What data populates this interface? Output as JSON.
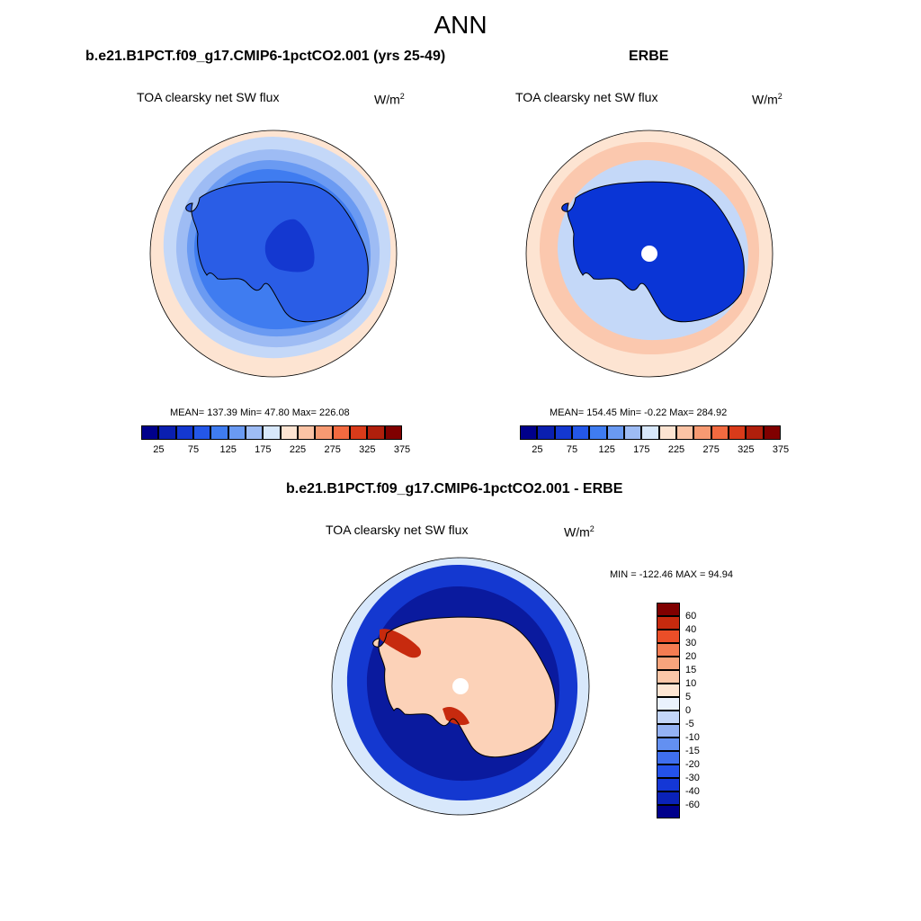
{
  "figure": {
    "season": "ANN",
    "panels": {
      "model": {
        "title": "b.e21.B1PCT.f09_g17.CMIP6-1pctCO2.001 (yrs 25-49)",
        "variable": "TOA clearsky net SW flux",
        "units": "W/m",
        "units_sup": "2",
        "stats": "MEAN= 137.39  Min=  47.80  Max= 226.08"
      },
      "obs": {
        "title": "ERBE",
        "variable": "TOA clearsky net SW flux",
        "units": "W/m",
        "units_sup": "2",
        "stats": "MEAN= 154.45  Min=  -0.22  Max= 284.92"
      },
      "diff": {
        "title": "b.e21.B1PCT.f09_g17.CMIP6-1pctCO2.001 - ERBE",
        "variable": "TOA clearsky net SW flux",
        "units": "W/m",
        "units_sup": "2",
        "stats": "MIN = -122.46 MAX =  94.94"
      }
    },
    "colorbar_abs": {
      "colors": [
        "#00008b",
        "#0a1fb0",
        "#1438d0",
        "#2457e8",
        "#3f7cf0",
        "#6a9af2",
        "#9ebcf4",
        "#d8e8fb",
        "#fde4d2",
        "#fbc3a5",
        "#f79a72",
        "#f26a40",
        "#d93b1a",
        "#b01f0c",
        "#800000"
      ],
      "tick_labels": [
        "25",
        "75",
        "125",
        "175",
        "225",
        "275",
        "325",
        "375"
      ]
    },
    "colorbar_diff": {
      "colors": [
        "#00008b",
        "#0a22b8",
        "#1437d6",
        "#2452ea",
        "#3f6fee",
        "#6390f1",
        "#94b2f4",
        "#c4d6f8",
        "#eaf2fd",
        "#fde6d4",
        "#fbc7a8",
        "#f8a47c",
        "#f47c52",
        "#ea4e28",
        "#c72a0e",
        "#800000"
      ],
      "tick_labels": [
        "60",
        "40",
        "30",
        "20",
        "15",
        "10",
        "5",
        "0",
        "-5",
        "-10",
        "-15",
        "-20",
        "-30",
        "-40",
        "-60"
      ]
    },
    "map_colors": {
      "ocean_outer": "#fde4d2",
      "model_rings": [
        "#c4d8f8",
        "#9ebcf4",
        "#6a9af2",
        "#3f7cf0",
        "#2457e8"
      ],
      "model_interior": "#2a5de6",
      "model_plateau": "#1438d0",
      "obs_light": "#c4d8f8",
      "obs_red": "#f9b08f",
      "obs_interior": "#0a35d6",
      "diff_outer": "#d8e8fb",
      "diff_blue": "#1438d0",
      "diff_darkblue": "#0a1a9e",
      "diff_interior": "#fcd2b8",
      "diff_red": "#f47c52",
      "diff_darkred": "#c72a0e",
      "coast": "#000000",
      "pole_hole": "#ffffff"
    }
  }
}
